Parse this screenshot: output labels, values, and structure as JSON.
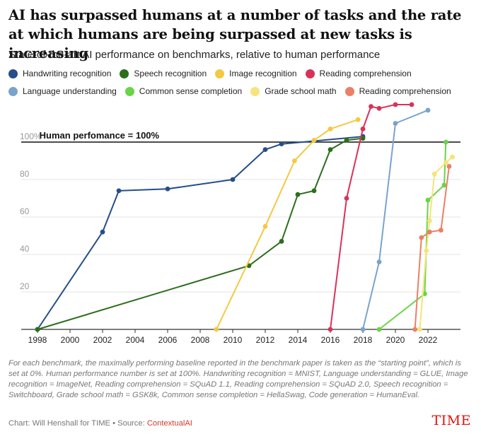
{
  "title": "AI has surpassed humans at a number of tasks and the rate at which humans are being surpassed at new tasks is increasing",
  "subtitle": "State-of-the-art AI performance on benchmarks, relative to human performance",
  "footnote": "For each benchmark, the maximally performing baseline reported in the benchmark paper is taken as the “starting point”, which is set at 0%. Human performance number is set at 100%. Handwriting recognition = MNIST, Language understanding = GLUE, Image recognition = ImageNet, Reading comprehension = SQuAD 1.1, Reading comprehension = SQuAD 2.0, Speech recognition = Switchboard, Grade school math = GSK8k, Common sense completion = HellaSwag, Code generation = HumanEval.",
  "credit": {
    "prefix": "Chart: Will Henshall for TIME • Source: ",
    "source": "ContextualAI"
  },
  "brand": "TIME",
  "chart_data": {
    "type": "line",
    "xlim": [
      1997,
      2024
    ],
    "ylim": [
      0,
      120
    ],
    "x_ticks": [
      1998,
      2000,
      2002,
      2004,
      2006,
      2008,
      2010,
      2012,
      2014,
      2016,
      2018,
      2020,
      2022
    ],
    "y_ticks": [
      {
        "value": 20,
        "label": "20"
      },
      {
        "value": 40,
        "label": "40"
      },
      {
        "value": 60,
        "label": "60"
      },
      {
        "value": 80,
        "label": "80"
      },
      {
        "value": 100,
        "label": "100%"
      }
    ],
    "grid": true,
    "legend_position": "top",
    "reference_line": {
      "value": 100,
      "label": "Human perfomance = 100%"
    },
    "series": [
      {
        "name": "Handwriting recognition",
        "color": "#254e8a",
        "points": [
          [
            1998,
            0
          ],
          [
            2002,
            52
          ],
          [
            2003,
            74
          ],
          [
            2006,
            75
          ],
          [
            2010,
            80
          ],
          [
            2012,
            96
          ],
          [
            2013,
            99
          ],
          [
            2018,
            103
          ]
        ]
      },
      {
        "name": "Speech recognition",
        "color": "#2c6e1c",
        "points": [
          [
            1998,
            0
          ],
          [
            2011,
            34
          ],
          [
            2013,
            47
          ],
          [
            2014,
            72
          ],
          [
            2015,
            74
          ],
          [
            2016,
            96
          ],
          [
            2017,
            101
          ],
          [
            2018,
            102
          ]
        ]
      },
      {
        "name": "Image recognition",
        "color": "#f5c842",
        "points": [
          [
            2009,
            0
          ],
          [
            2012,
            55
          ],
          [
            2013.8,
            90
          ],
          [
            2015,
            101
          ],
          [
            2016,
            107
          ],
          [
            2017.7,
            112
          ]
        ]
      },
      {
        "name": "Reading comprehension",
        "color": "#d8325a",
        "points": [
          [
            2016,
            0
          ],
          [
            2017,
            70
          ],
          [
            2018,
            107
          ],
          [
            2018.5,
            119
          ],
          [
            2019,
            118
          ],
          [
            2020,
            120
          ],
          [
            2021,
            120
          ]
        ]
      },
      {
        "name": "Language understanding",
        "color": "#7aa3cc",
        "points": [
          [
            2018,
            0
          ],
          [
            2019,
            36
          ],
          [
            2020,
            110
          ],
          [
            2022,
            117
          ]
        ]
      },
      {
        "name": "Common sense completion",
        "color": "#69d448",
        "points": [
          [
            2019,
            0
          ],
          [
            2021.8,
            19
          ],
          [
            2022,
            69
          ],
          [
            2023,
            77
          ],
          [
            2023.1,
            100
          ]
        ]
      },
      {
        "name": "Grade school math",
        "color": "#f5e47a",
        "points": [
          [
            2021.5,
            0
          ],
          [
            2021.9,
            42
          ],
          [
            2022.1,
            58
          ],
          [
            2022.4,
            83
          ],
          [
            2023.1,
            89
          ],
          [
            2023.5,
            92
          ]
        ]
      },
      {
        "name": "Reading comprehension",
        "color": "#ea8066",
        "points": [
          [
            2021.2,
            0
          ],
          [
            2021.6,
            49
          ],
          [
            2022.1,
            52
          ],
          [
            2022.8,
            53
          ],
          [
            2023.3,
            87
          ]
        ]
      }
    ]
  }
}
